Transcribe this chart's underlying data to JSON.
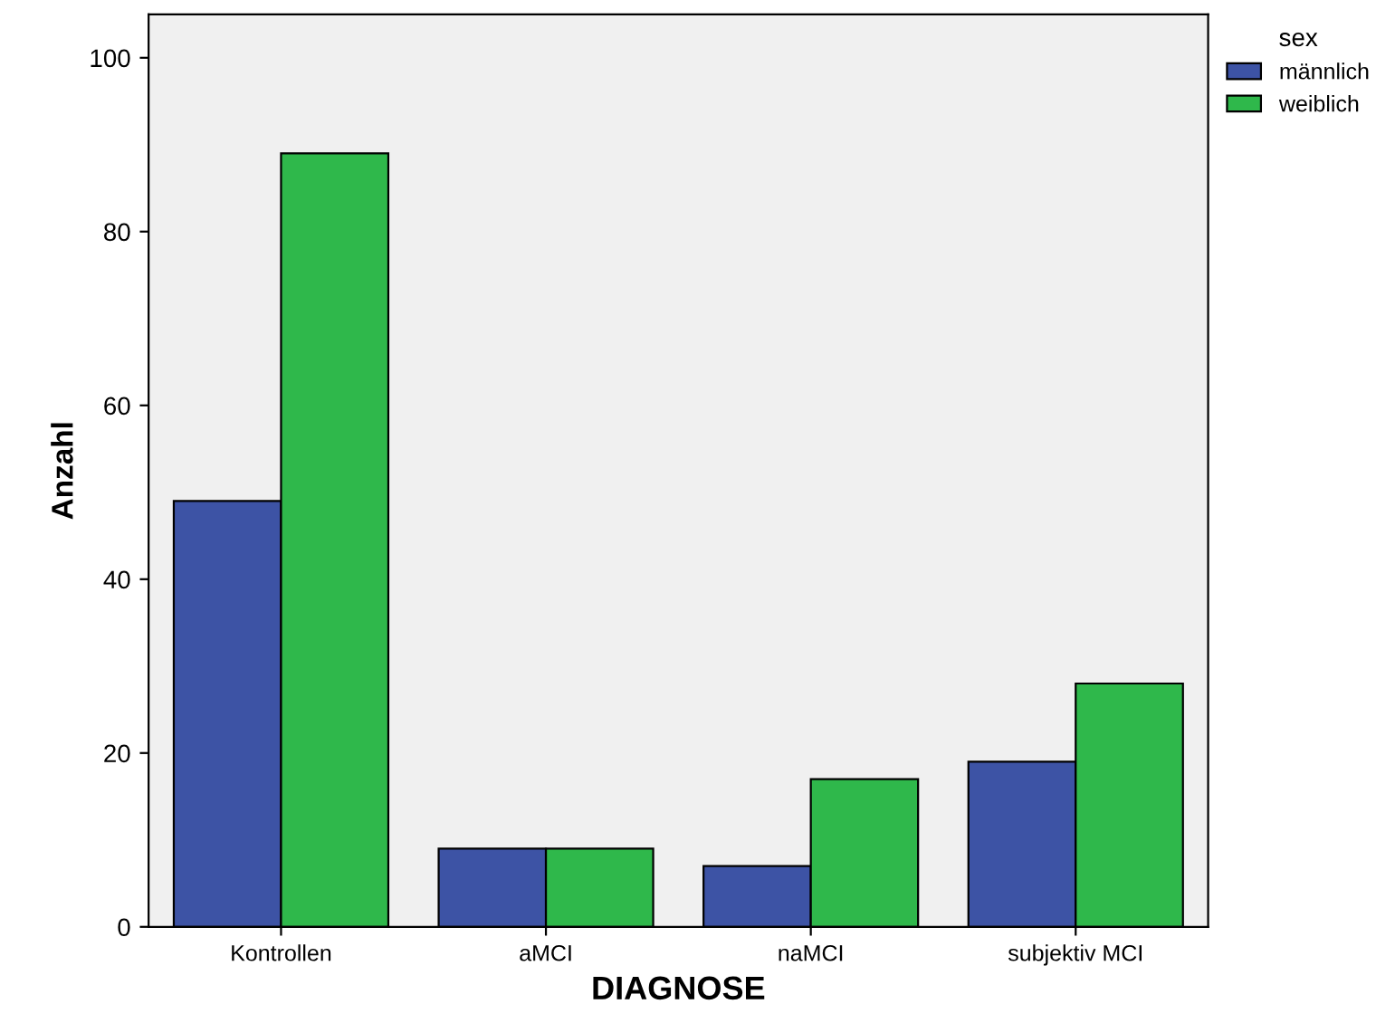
{
  "chart_data": {
    "type": "bar",
    "xlabel": "DIAGNOSE",
    "ylabel": "Anzahl",
    "legend_title": "sex",
    "categories": [
      "Kontrollen",
      "aMCI",
      "naMCI",
      "subjektiv MCI"
    ],
    "series": [
      {
        "name": "männlich",
        "color": "#3d53a5",
        "values": [
          49,
          9,
          7,
          19
        ]
      },
      {
        "name": "weiblich",
        "color": "#2fb84b",
        "values": [
          89,
          9,
          17,
          28
        ]
      }
    ],
    "ylim": [
      0,
      105
    ],
    "yticks": [
      0,
      20,
      40,
      60,
      80,
      100
    ],
    "grid": false,
    "legend": "top right"
  }
}
